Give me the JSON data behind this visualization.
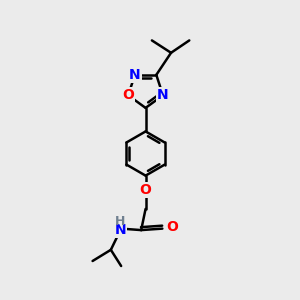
{
  "bg_color": "#ebebeb",
  "bond_color": "#000000",
  "N_color": "#0000ff",
  "O_color": "#ff0000",
  "H_color": "#708090",
  "line_width": 1.8,
  "font_size": 10,
  "fig_width": 3.0,
  "fig_height": 3.0,
  "dpi": 100,
  "xlim": [
    0,
    10
  ],
  "ylim": [
    0,
    10
  ]
}
